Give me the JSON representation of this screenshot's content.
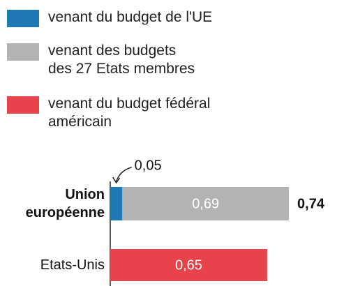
{
  "chart_data": {
    "type": "stacked-bar-horizontal",
    "categories": [
      "Union\neuropéenne",
      "Etats-Unis"
    ],
    "category_bold": [
      true,
      false
    ],
    "series": [
      {
        "name": "venant du budget de l'UE",
        "color": "#1f77b4",
        "values": [
          0.05,
          null
        ],
        "value_labels": [
          "0,05",
          null
        ]
      },
      {
        "name": "venant des budgets\ndes 27 Etats membres",
        "color": "#b3b3b3",
        "values": [
          0.69,
          null
        ],
        "value_labels": [
          "0,69",
          null
        ]
      },
      {
        "name": "venant du budget fédéral\naméricain",
        "color": "#e8424a",
        "values": [
          null,
          0.65
        ],
        "value_labels": [
          null,
          "0,65"
        ]
      }
    ],
    "totals": [
      0.74,
      null
    ],
    "total_labels": [
      "0,74",
      null
    ]
  }
}
